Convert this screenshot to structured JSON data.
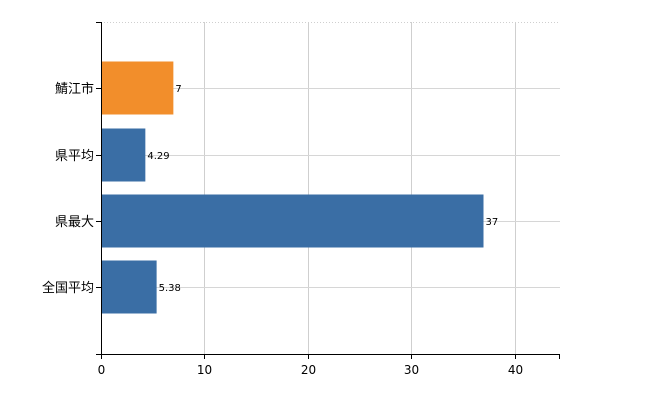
{
  "chart_data": {
    "type": "bar",
    "orientation": "horizontal",
    "categories": [
      "鯖江市",
      "県平均",
      "県最大",
      "全国平均"
    ],
    "values": [
      7,
      4.29,
      37,
      5.38
    ],
    "value_labels": [
      "7",
      "4.29",
      "37",
      "5.38"
    ],
    "bar_colors": [
      "#f28e2b",
      "#3a6ea5",
      "#3a6ea5",
      "#3a6ea5"
    ],
    "xlim": [
      0,
      44.4
    ],
    "x_ticks": [
      0,
      10,
      20,
      30,
      40
    ],
    "x_tick_labels": [
      "0",
      "10",
      "20",
      "30",
      "40"
    ],
    "grid": true,
    "legend": "none"
  }
}
